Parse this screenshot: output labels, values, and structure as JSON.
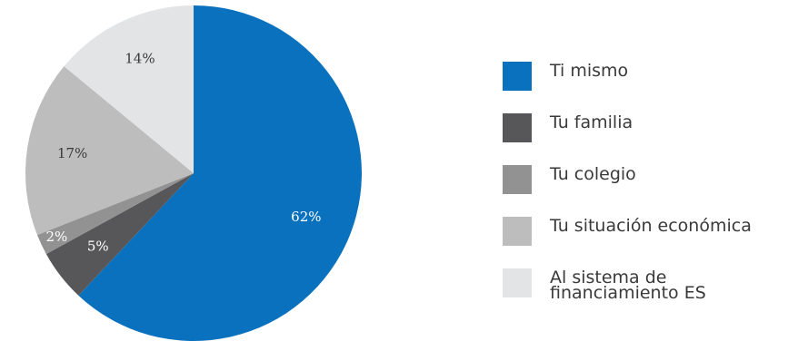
{
  "chart_data": {
    "type": "pie",
    "title": "",
    "slices": [
      {
        "name": "Ti mismo",
        "value": 62,
        "label": "62%",
        "color": "#0A71BE",
        "label_color": "#ffffff"
      },
      {
        "name": "Tu familia",
        "value": 5,
        "label": "5%",
        "color": "#575759",
        "label_color": "#ffffff"
      },
      {
        "name": "Tu colegio",
        "value": 2,
        "label": "2%",
        "color": "#929292",
        "label_color": "#ffffff"
      },
      {
        "name": "Tu situación económica",
        "value": 17,
        "label": "17%",
        "color": "#BDBDBD",
        "label_color": "#3a3a3a"
      },
      {
        "name": "Al sistema de\nfinanciamiento ES",
        "value": 14,
        "label": "14%",
        "color": "#E3E4E6",
        "label_color": "#3a3a3a"
      }
    ],
    "start": "12 o'clock",
    "direction": "clockwise",
    "legend": {
      "position": "right"
    }
  }
}
